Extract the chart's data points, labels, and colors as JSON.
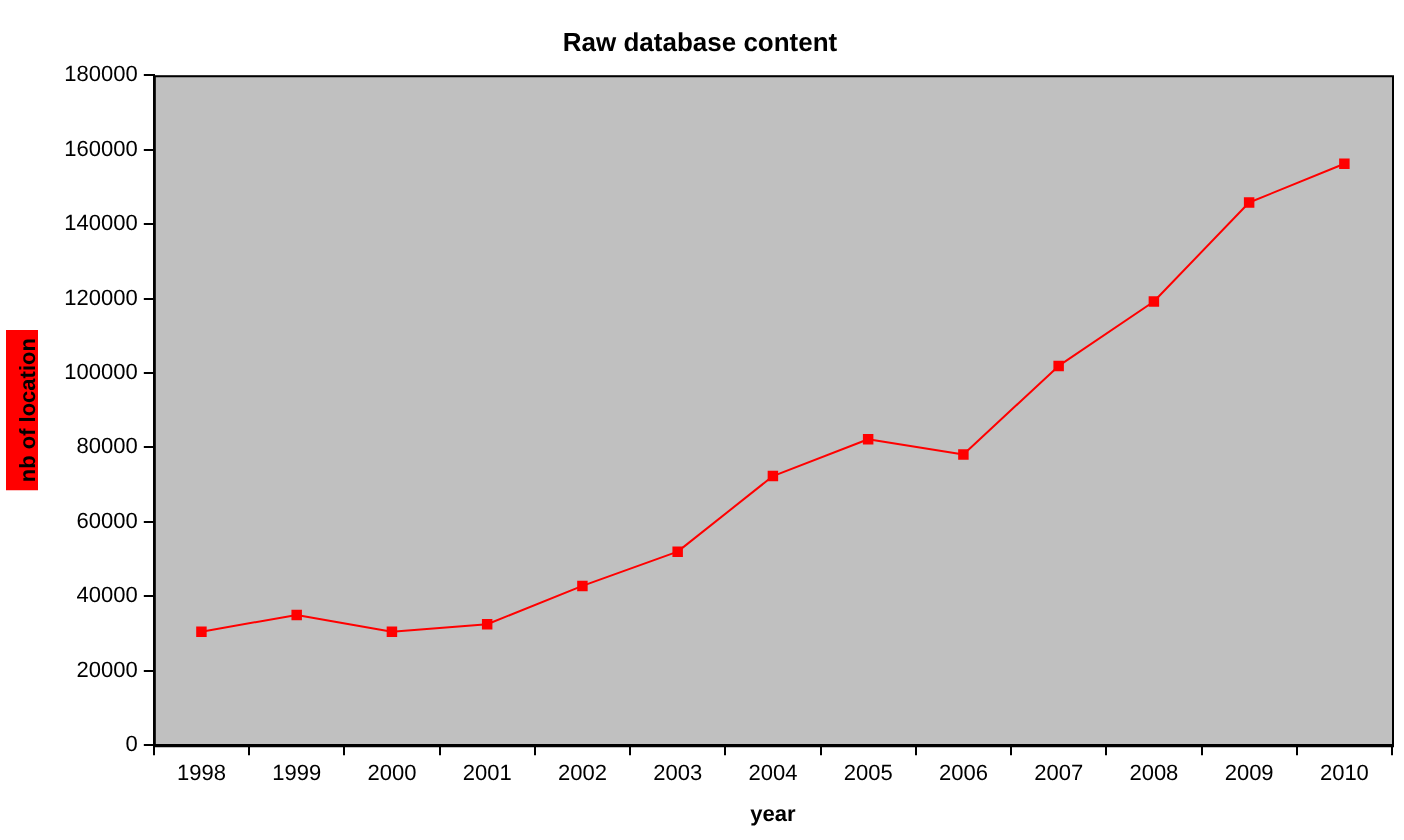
{
  "chart_data": {
    "type": "line",
    "title": "Raw database content",
    "xlabel": "year",
    "ylabel": "nb of location",
    "categories": [
      "1998",
      "1999",
      "2000",
      "2001",
      "2002",
      "2003",
      "2004",
      "2005",
      "2006",
      "2007",
      "2008",
      "2009",
      "2010"
    ],
    "series": [
      {
        "color": "#ff0000",
        "values": [
          30500,
          35000,
          30500,
          32500,
          42800,
          52000,
          72300,
          82200,
          78100,
          101900,
          119200,
          145800,
          156200
        ]
      }
    ],
    "ylim": [
      0,
      180000
    ],
    "yticks": [
      0,
      20000,
      40000,
      60000,
      80000,
      100000,
      120000,
      140000,
      160000,
      180000
    ],
    "grid": false,
    "legend": false,
    "marker": "square",
    "line_style": "solid"
  }
}
